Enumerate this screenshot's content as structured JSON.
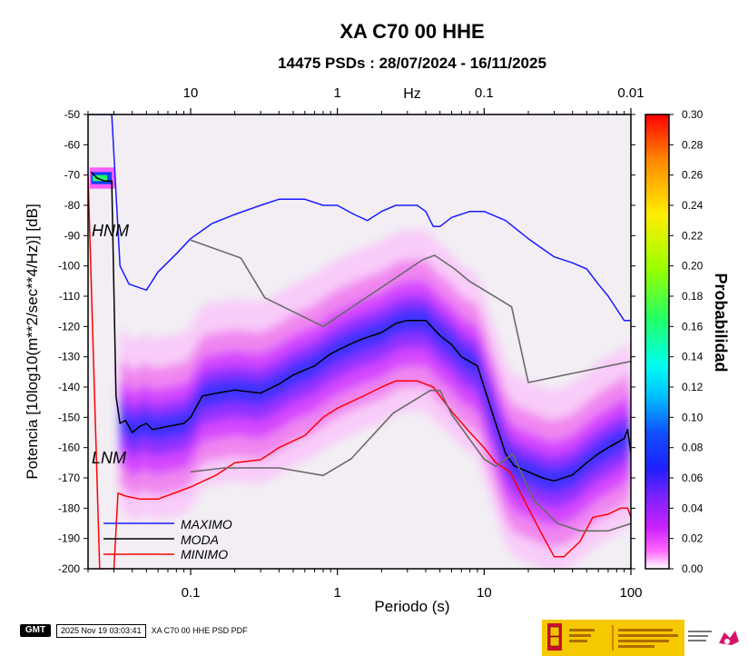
{
  "chart_data": {
    "type": "heatmap",
    "title": "XA C70 00 HHE",
    "subtitle": "14475 PSDs : 28/07/2024 - 16/11/2025",
    "xlabel": "Periodo (s)",
    "ylabel": "Potencia [10log10(m**2/sec**4/Hz)] [dB]",
    "xscale": "log",
    "xlim": [
      0.02,
      100
    ],
    "ylim": [
      -200,
      -50
    ],
    "x_ticks": [
      "0.1",
      "1",
      "10",
      "100"
    ],
    "y_ticks": [
      "-50",
      "-60",
      "-70",
      "-80",
      "-90",
      "-100",
      "-110",
      "-120",
      "-130",
      "-140",
      "-150",
      "-160",
      "-170",
      "-180",
      "-190",
      "-200"
    ],
    "top_axis_label": "Hz",
    "top_axis_ticks": [
      "10",
      "1",
      "0.1",
      "0.01"
    ],
    "colorbar": {
      "label": "Probabilidad",
      "range": [
        0,
        0.3
      ],
      "ticks": [
        "0.00",
        "0.02",
        "0.04",
        "0.06",
        "0.08",
        "0.10",
        "0.12",
        "0.14",
        "0.16",
        "0.18",
        "0.20",
        "0.22",
        "0.24",
        "0.26",
        "0.28",
        "0.30"
      ]
    },
    "model_labels": {
      "high": "HNM",
      "low": "LNM"
    },
    "legend": {
      "position": "bottom-left",
      "entries": [
        "MAXIMO",
        "MODA",
        "MINIMO"
      ]
    },
    "series": [
      {
        "name": "MAXIMO",
        "color": "#1a1aff",
        "points": [
          [
            0.02,
            -50
          ],
          [
            0.029,
            -50
          ],
          [
            0.033,
            -100
          ],
          [
            0.038,
            -106
          ],
          [
            0.05,
            -108
          ],
          [
            0.06,
            -102
          ],
          [
            0.08,
            -96
          ],
          [
            0.1,
            -91
          ],
          [
            0.14,
            -86
          ],
          [
            0.2,
            -83
          ],
          [
            0.3,
            -80
          ],
          [
            0.4,
            -78
          ],
          [
            0.6,
            -78
          ],
          [
            0.8,
            -80
          ],
          [
            1.0,
            -80
          ],
          [
            1.3,
            -83
          ],
          [
            1.6,
            -85
          ],
          [
            2.0,
            -82
          ],
          [
            2.5,
            -80
          ],
          [
            3.5,
            -80
          ],
          [
            4.0,
            -82
          ],
          [
            4.5,
            -87
          ],
          [
            5.0,
            -87
          ],
          [
            6.0,
            -84
          ],
          [
            8.0,
            -82
          ],
          [
            10,
            -82
          ],
          [
            14,
            -85
          ],
          [
            20,
            -91
          ],
          [
            30,
            -97
          ],
          [
            40,
            -99
          ],
          [
            50,
            -101
          ],
          [
            60,
            -106
          ],
          [
            70,
            -110
          ],
          [
            90,
            -118
          ],
          [
            100,
            -118
          ]
        ]
      },
      {
        "name": "MODA",
        "color": "#000000",
        "points": [
          [
            0.021,
            -69
          ],
          [
            0.023,
            -71
          ],
          [
            0.026,
            -72
          ],
          [
            0.029,
            -72
          ],
          [
            0.031,
            -143
          ],
          [
            0.033,
            -152
          ],
          [
            0.036,
            -151
          ],
          [
            0.04,
            -155
          ],
          [
            0.045,
            -153
          ],
          [
            0.05,
            -152
          ],
          [
            0.055,
            -154
          ],
          [
            0.07,
            -153
          ],
          [
            0.09,
            -152
          ],
          [
            0.1,
            -150
          ],
          [
            0.12,
            -143
          ],
          [
            0.15,
            -142
          ],
          [
            0.2,
            -141
          ],
          [
            0.3,
            -142
          ],
          [
            0.4,
            -139
          ],
          [
            0.5,
            -136
          ],
          [
            0.7,
            -133
          ],
          [
            0.9,
            -129
          ],
          [
            1.2,
            -126
          ],
          [
            1.5,
            -124
          ],
          [
            2.0,
            -122
          ],
          [
            2.5,
            -119
          ],
          [
            3.0,
            -118
          ],
          [
            4.0,
            -118
          ],
          [
            5.0,
            -123
          ],
          [
            6.0,
            -126
          ],
          [
            7.0,
            -130
          ],
          [
            9.0,
            -133
          ],
          [
            10,
            -140
          ],
          [
            12,
            -152
          ],
          [
            14,
            -162
          ],
          [
            16,
            -166
          ],
          [
            20,
            -168
          ],
          [
            25,
            -170
          ],
          [
            30,
            -171
          ],
          [
            40,
            -169
          ],
          [
            50,
            -165
          ],
          [
            60,
            -162
          ],
          [
            70,
            -160
          ],
          [
            90,
            -157
          ],
          [
            95,
            -154
          ],
          [
            100,
            -162
          ]
        ]
      },
      {
        "name": "MINIMO",
        "color": "#ff0000",
        "points": [
          [
            0.02,
            -70
          ],
          [
            0.024,
            -200
          ],
          [
            0.03,
            -200
          ],
          [
            0.032,
            -175
          ],
          [
            0.036,
            -176
          ],
          [
            0.045,
            -177
          ],
          [
            0.06,
            -177
          ],
          [
            0.1,
            -173
          ],
          [
            0.15,
            -169
          ],
          [
            0.2,
            -165
          ],
          [
            0.3,
            -164
          ],
          [
            0.4,
            -160
          ],
          [
            0.6,
            -156
          ],
          [
            0.8,
            -150
          ],
          [
            1.0,
            -147
          ],
          [
            1.5,
            -143
          ],
          [
            2.0,
            -140
          ],
          [
            2.5,
            -138
          ],
          [
            3.5,
            -138
          ],
          [
            4.5,
            -140
          ],
          [
            6.0,
            -148
          ],
          [
            8.0,
            -155
          ],
          [
            10,
            -160
          ],
          [
            12,
            -165
          ],
          [
            15,
            -168
          ],
          [
            20,
            -180
          ],
          [
            25,
            -189
          ],
          [
            30,
            -196
          ],
          [
            35,
            -196
          ],
          [
            45,
            -191
          ],
          [
            55,
            -183
          ],
          [
            70,
            -182
          ],
          [
            85,
            -180
          ],
          [
            95,
            -180
          ],
          [
            100,
            -183
          ]
        ]
      },
      {
        "name": "HNM",
        "color": "#6a6a6a",
        "points": [
          [
            0.1,
            -91.5
          ],
          [
            0.22,
            -97.4
          ],
          [
            0.32,
            -110.5
          ],
          [
            0.8,
            -120
          ],
          [
            3.8,
            -98
          ],
          [
            4.6,
            -96.5
          ],
          [
            6.3,
            -101
          ],
          [
            7.9,
            -105
          ],
          [
            15.4,
            -113.5
          ],
          [
            20,
            -138.5
          ],
          [
            354.8,
            -126
          ]
        ]
      },
      {
        "name": "LNM",
        "color": "#6a6a6a",
        "points": [
          [
            0.1,
            -168
          ],
          [
            0.17,
            -166.7
          ],
          [
            0.4,
            -166.7
          ],
          [
            0.8,
            -169.2
          ],
          [
            1.24,
            -163.7
          ],
          [
            2.4,
            -148.6
          ],
          [
            4.3,
            -141.1
          ],
          [
            5.0,
            -141.1
          ],
          [
            6.0,
            -149
          ],
          [
            10,
            -163.8
          ],
          [
            12,
            -166.2
          ],
          [
            15.6,
            -162.1
          ],
          [
            21.9,
            -177.5
          ],
          [
            31.6,
            -185
          ],
          [
            45,
            -187.5
          ],
          [
            70,
            -187.5
          ],
          [
            101,
            -185
          ]
        ]
      }
    ]
  },
  "footer": {
    "logo_text": "GMT",
    "timestamp": "2025 Nov 19 03:03:41",
    "caption": "XA C70 00 HHE PSD PDF"
  }
}
